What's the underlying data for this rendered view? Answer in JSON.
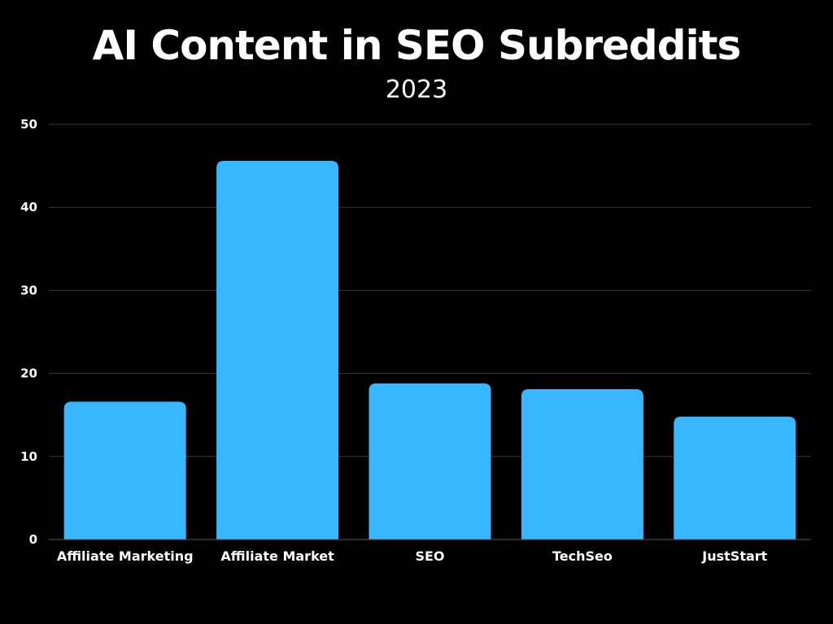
{
  "chart_data": {
    "type": "bar",
    "title": "AI Content in SEO Subreddits",
    "subtitle": "2023",
    "categories": [
      "Affiliate Marketing",
      "Affiliate Market",
      "SEO",
      "TechSeo",
      "JustStart"
    ],
    "values": [
      16.6,
      45.6,
      18.8,
      18.1,
      14.8
    ],
    "ylim": [
      0,
      50
    ],
    "yticks": [
      0,
      10,
      20,
      30,
      40,
      50
    ],
    "grid": true,
    "legend": "none",
    "bar_color": "#38b6ff",
    "background": "#000000",
    "text_color": "#ffffff",
    "grid_color": "#3a3a3a"
  }
}
